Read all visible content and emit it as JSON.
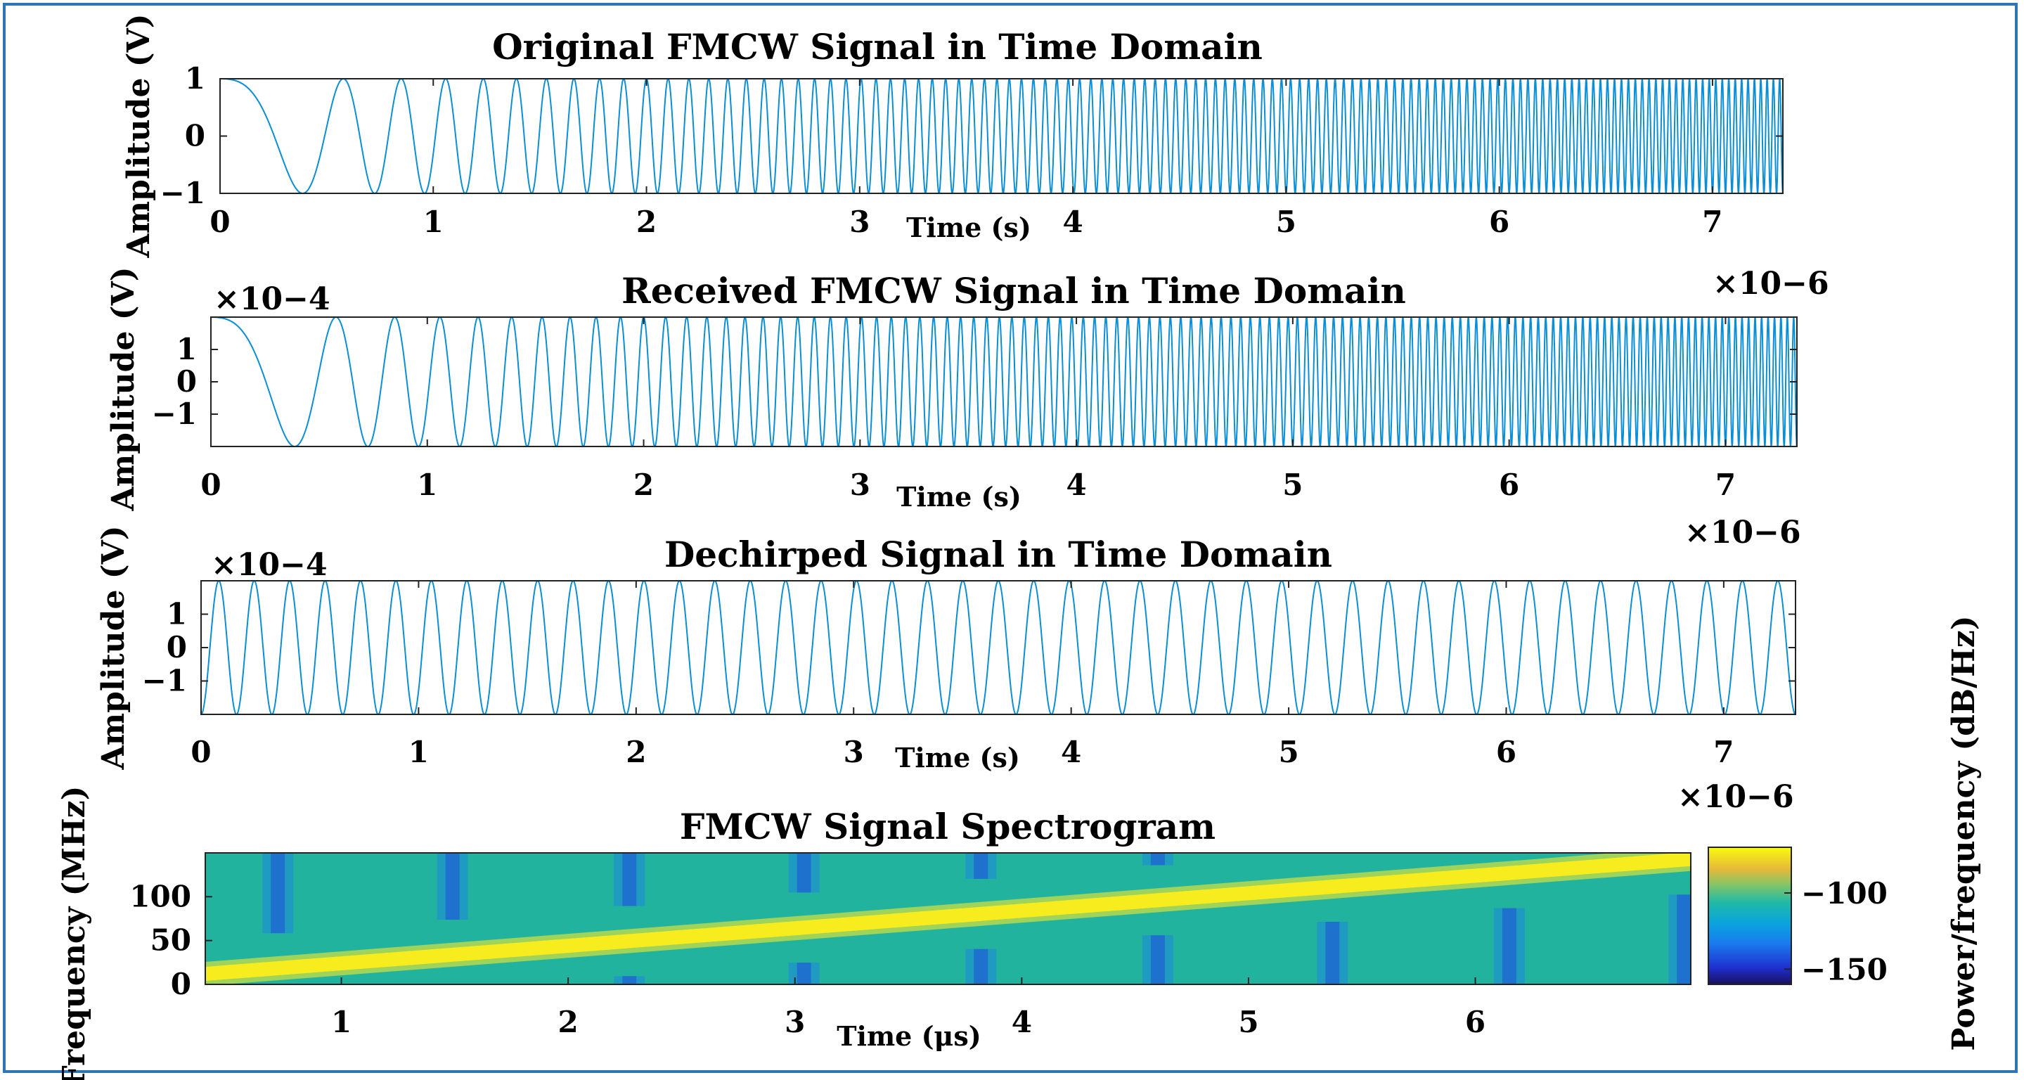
{
  "chart_data": [
    {
      "type": "line",
      "id": "original",
      "title": "Original FMCW Signal in Time Domain",
      "xlabel": "Time (s)",
      "ylabel": "Amplitude (V)",
      "xlim": [
        0,
        7.33
      ],
      "ylim": [
        -1,
        1
      ],
      "xticks": [
        "0",
        "1",
        "2",
        "3",
        "4",
        "5",
        "6",
        "7"
      ],
      "yticks": [
        "1",
        "0",
        "−1"
      ],
      "x_multiplier": "×10−6",
      "y_multiplier": "",
      "amplitude": 1,
      "signal": "linear chirp (instantaneous frequency 0 → 150 MHz), aliased rendering",
      "color": "#0072bd"
    },
    {
      "type": "line",
      "id": "received",
      "title": "Received FMCW Signal in Time Domain",
      "xlabel": "Time (s)",
      "ylabel": "Amplitude (V)",
      "xlim": [
        0,
        7.33
      ],
      "ylim": [
        -0.0002,
        0.0002
      ],
      "xticks": [
        "0",
        "1",
        "2",
        "3",
        "4",
        "5",
        "6",
        "7"
      ],
      "yticks": [
        "1",
        "0",
        "−1"
      ],
      "x_multiplier": "×10−6",
      "y_multiplier": "×10−4",
      "amplitude": 0.0002,
      "signal": "delayed linear chirp",
      "color": "#0072bd"
    },
    {
      "type": "line",
      "id": "dechirped",
      "title": "Dechirped Signal in Time Domain",
      "xlabel": "Time (s)",
      "ylabel": "Amplitude (V)",
      "xlim": [
        0,
        7.33
      ],
      "ylim": [
        -0.0002,
        0.0002
      ],
      "xticks": [
        "0",
        "1",
        "2",
        "3",
        "4",
        "5",
        "6",
        "7"
      ],
      "yticks": [
        "1",
        "0",
        "−1"
      ],
      "x_multiplier": "×10−6",
      "y_multiplier": "×10−4",
      "amplitude": 0.0002,
      "beat_cycles": 45,
      "signal": "constant-frequency beat tone",
      "color": "#0072bd"
    },
    {
      "type": "heatmap",
      "id": "spectrogram",
      "title": "FMCW Signal Spectrogram",
      "xlabel": "Time (μs)",
      "ylabel": "Frequency (MHz)",
      "xlim": [
        0.4,
        6.95
      ],
      "ylim": [
        0,
        150
      ],
      "xticks": [
        "1",
        "2",
        "3",
        "4",
        "5",
        "6"
      ],
      "yticks": [
        "100",
        "50",
        "0"
      ],
      "ridge": {
        "start": [
          0.4,
          12
        ],
        "end": [
          6.95,
          143
        ]
      },
      "colorbar": {
        "label": "Power/frequency (dB/Hz)",
        "ticks": [
          "−100",
          "−150"
        ],
        "range": [
          -160,
          -70
        ],
        "colormap": "parula"
      }
    }
  ]
}
